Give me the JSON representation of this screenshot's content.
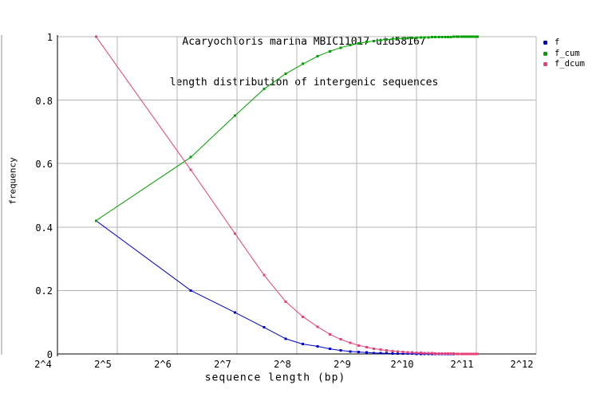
{
  "title": {
    "line1": "Acaryochloris marina MBIC11017 uid58167",
    "line2": "length distribution of intergenic sequences"
  },
  "colors": {
    "background": "#ffffff",
    "grid": "#b4b4b4",
    "axis": "#000000",
    "edge_line": "#c9c9c9",
    "series_f": "#0000cc",
    "series_f_cum": "#00a000",
    "series_f_dcum": "#e84078"
  },
  "chart_data": {
    "type": "line",
    "title": "Acaryochloris marina MBIC11017 uid58167 - length distribution of intergenic sequences",
    "xlabel": "sequence length (bp)",
    "ylabel": "frequency",
    "x_scale": "log2",
    "xlim_exponents": [
      4,
      12
    ],
    "ylim": [
      0,
      1
    ],
    "grid": true,
    "legend_position": "top-right",
    "x_ticks": {
      "labels": [
        "2^4",
        "2^5",
        "2^6",
        "2^7",
        "2^8",
        "2^9",
        "2^10",
        "2^11",
        "2^12"
      ],
      "exponents": [
        4,
        5,
        6,
        7,
        8,
        9,
        10,
        11,
        12
      ]
    },
    "y_ticks": {
      "labels": [
        "0",
        "0.2",
        "0.4",
        "0.6",
        "0.8",
        "1"
      ],
      "values": [
        0,
        0.2,
        0.4,
        0.6,
        0.8,
        1
      ]
    },
    "x": [
      25,
      75,
      125,
      175,
      225,
      275,
      325,
      375,
      425,
      475,
      525,
      575,
      625,
      675,
      725,
      775,
      825,
      875,
      925,
      975,
      1025,
      1075,
      1125,
      1175,
      1225,
      1275,
      1325,
      1375,
      1425,
      1475,
      1525,
      1575,
      1625,
      1675,
      1725,
      1775,
      1825,
      1875,
      1925,
      1975,
      2025,
      2075
    ],
    "series": [
      {
        "name": "f",
        "color": "#0000cc",
        "values": [
          0.42,
          0.2,
          0.131,
          0.084,
          0.048,
          0.031,
          0.024,
          0.016,
          0.011,
          0.008,
          0.006,
          0.0045,
          0.003,
          0.0025,
          0.002,
          0.0015,
          0.0012,
          0.001,
          0.0008,
          0.0007,
          0.0006,
          0.0005,
          0.0004,
          0.0004,
          0.0003,
          0.0002,
          0.0002,
          0.0002,
          0.0001,
          0.0001,
          0.0001,
          0.0001,
          0.0001,
          5e-05,
          5e-05,
          5e-05,
          5e-05,
          5e-05,
          5e-05,
          5e-05,
          5e-05,
          0.0001
        ]
      },
      {
        "name": "f_cum",
        "color": "#00a000",
        "values": [
          0.42,
          0.62,
          0.751,
          0.835,
          0.883,
          0.914,
          0.938,
          0.954,
          0.965,
          0.973,
          0.979,
          0.9835,
          0.9865,
          0.989,
          0.991,
          0.9925,
          0.9937,
          0.9947,
          0.9955,
          0.9962,
          0.9968,
          0.9973,
          0.9977,
          0.9981,
          0.9984,
          0.9986,
          0.9988,
          0.999,
          0.9991,
          0.9992,
          0.9993,
          0.9994,
          0.9995,
          0.99955,
          0.9996,
          0.99965,
          0.9997,
          0.99975,
          0.9998,
          0.99985,
          0.9999,
          1.0
        ]
      },
      {
        "name": "f_dcum",
        "color": "#e84078",
        "values": [
          1.0,
          0.58,
          0.38,
          0.249,
          0.165,
          0.117,
          0.086,
          0.062,
          0.046,
          0.035,
          0.027,
          0.021,
          0.0165,
          0.0135,
          0.011,
          0.009,
          0.0075,
          0.0063,
          0.0053,
          0.0045,
          0.0038,
          0.0032,
          0.0027,
          0.0023,
          0.0019,
          0.0016,
          0.0014,
          0.0012,
          0.001,
          0.0009,
          0.0008,
          0.0007,
          0.0006,
          0.0005,
          0.00045,
          0.0004,
          0.00035,
          0.0003,
          0.00025,
          0.0002,
          0.00015,
          0.0001
        ]
      }
    ]
  }
}
